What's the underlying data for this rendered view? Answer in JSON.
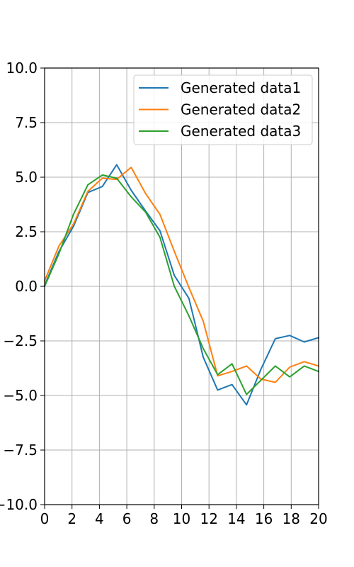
{
  "chart_data": {
    "type": "line",
    "title": "",
    "xlabel": "",
    "ylabel": "",
    "xlim": [
      0,
      20
    ],
    "ylim": [
      -10,
      10
    ],
    "xticks": [
      0,
      2,
      4,
      6,
      8,
      10,
      12,
      14,
      16,
      18,
      20
    ],
    "yticks": [
      -10.0,
      -7.5,
      -5.0,
      -2.5,
      0.0,
      2.5,
      5.0,
      7.5,
      10.0
    ],
    "xtick_labels": [
      "0",
      "2",
      "4",
      "6",
      "8",
      "10",
      "12",
      "14",
      "16",
      "18",
      "20"
    ],
    "ytick_labels": [
      "−10.0",
      "−7.5",
      "−5.0",
      "−2.5",
      "0.0",
      "2.5",
      "5.0",
      "7.5",
      "10.0"
    ],
    "grid": true,
    "legend_position": "top-right",
    "x": [
      0,
      1.05,
      2.11,
      3.16,
      4.21,
      5.26,
      6.32,
      7.37,
      8.42,
      9.47,
      10.53,
      11.58,
      12.63,
      13.68,
      14.74,
      15.79,
      16.84,
      17.89,
      18.95,
      20
    ],
    "series": [
      {
        "name": "Generated data1",
        "color": "#1f77b4",
        "values": [
          0.05,
          1.6,
          2.75,
          4.3,
          4.57,
          5.57,
          4.4,
          3.45,
          2.55,
          0.5,
          -0.55,
          -3.25,
          -4.75,
          -4.5,
          -5.43,
          -3.8,
          -2.4,
          -2.25,
          -2.55,
          -2.35
        ]
      },
      {
        "name": "Generated data2",
        "color": "#ff7f0e",
        "values": [
          0.25,
          1.85,
          2.85,
          4.35,
          4.95,
          4.9,
          5.45,
          4.25,
          3.3,
          1.6,
          -0.05,
          -1.6,
          -4.1,
          -3.9,
          -3.65,
          -4.25,
          -4.4,
          -3.7,
          -3.45,
          -3.65
        ]
      },
      {
        "name": "Generated data3",
        "color": "#2ca02c",
        "values": [
          0.0,
          1.5,
          3.3,
          4.65,
          5.1,
          4.95,
          4.1,
          3.4,
          2.25,
          0.0,
          -1.35,
          -2.85,
          -4.05,
          -3.55,
          -4.95,
          -4.3,
          -3.65,
          -4.15,
          -3.65,
          -3.9
        ]
      }
    ]
  }
}
